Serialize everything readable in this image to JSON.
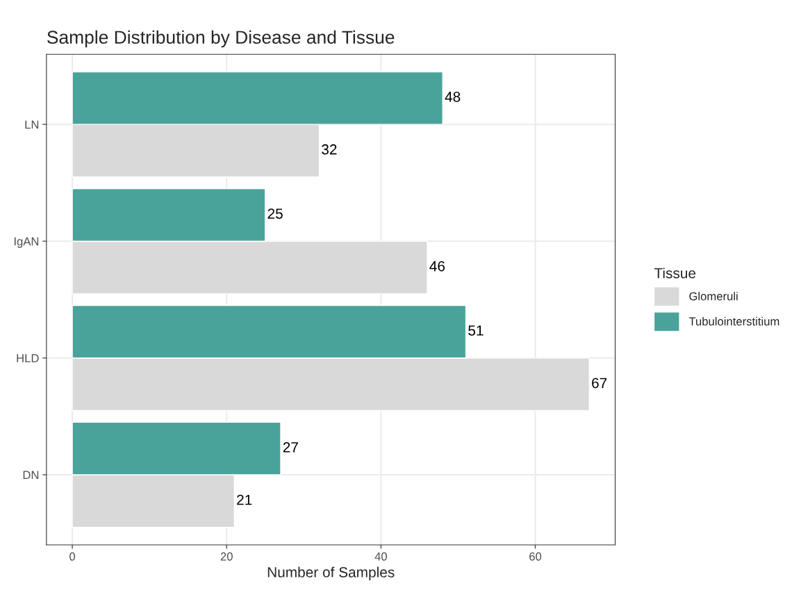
{
  "chart_data": {
    "type": "bar",
    "orientation": "horizontal",
    "title": "Sample Distribution by Disease and Tissue",
    "xlabel": "Number of Samples",
    "legend_title": "Tissue",
    "categories": [
      "LN",
      "IgAN",
      "HLD",
      "DN"
    ],
    "series": [
      {
        "name": "Glomeruli",
        "color": "#d9d9d9",
        "values": [
          32,
          46,
          67,
          21
        ]
      },
      {
        "name": "Tubulointerstitium",
        "color": "#4aa39a",
        "values": [
          48,
          25,
          51,
          27
        ]
      }
    ],
    "xlim": [
      -3.35,
      70.35
    ],
    "xticks": [
      0,
      20,
      40,
      60
    ],
    "grid": true,
    "legend": "right",
    "data_labels": true
  }
}
